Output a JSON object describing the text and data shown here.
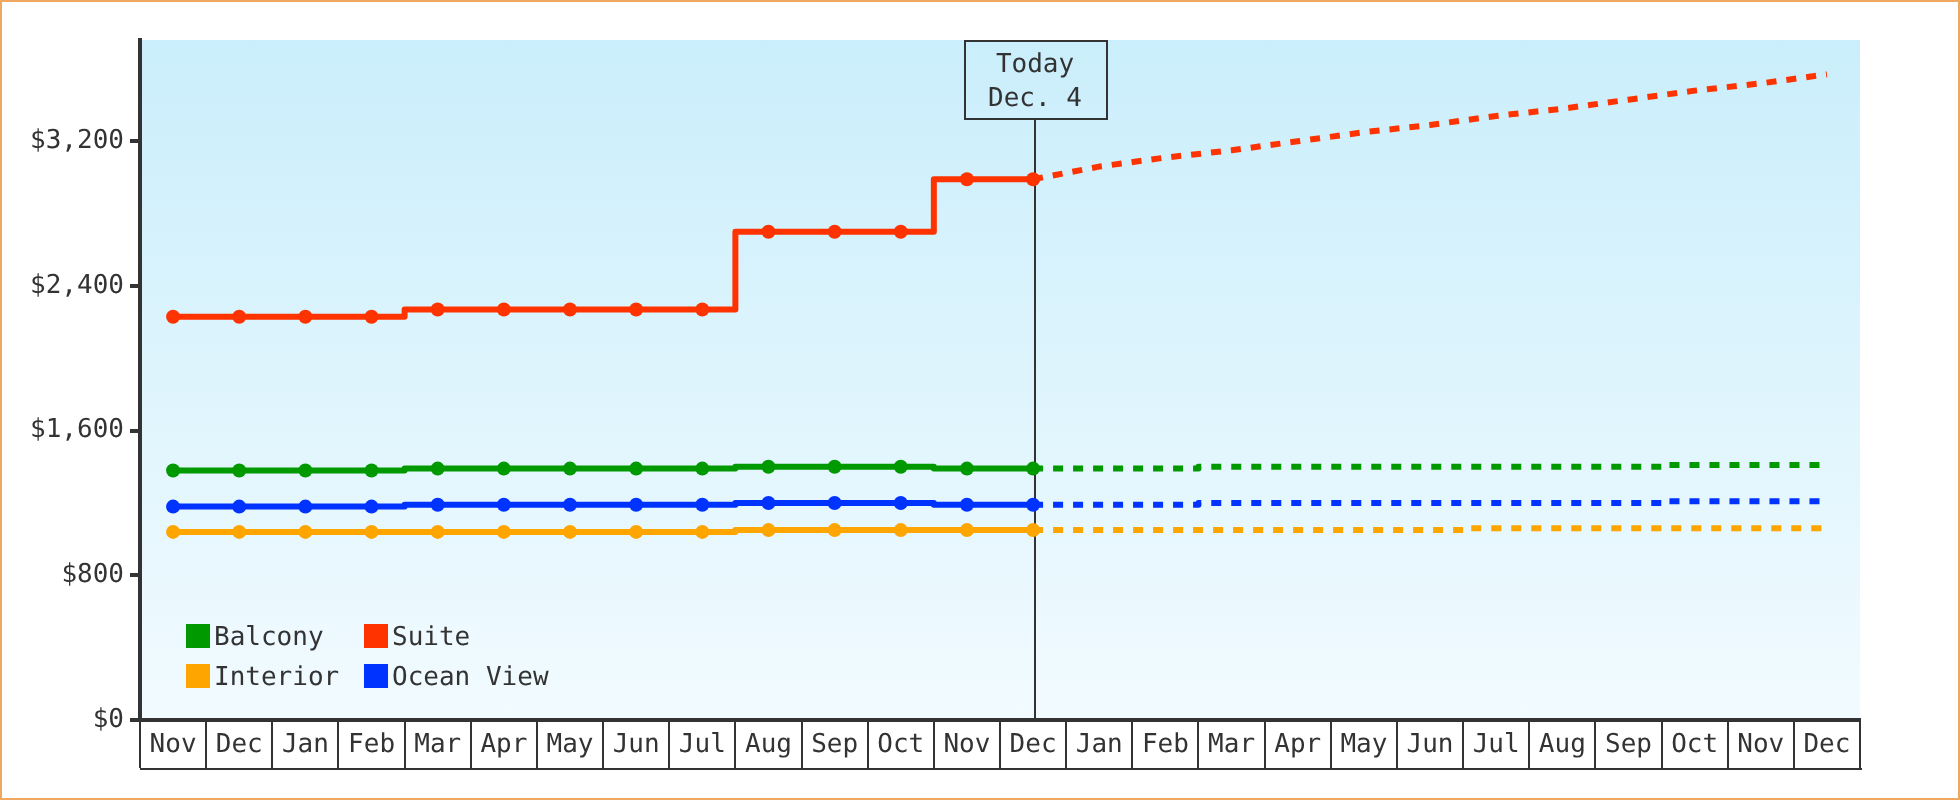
{
  "chart_data": {
    "type": "step",
    "categories": [
      "Nov",
      "Dec",
      "Jan",
      "Feb",
      "Mar",
      "Apr",
      "May",
      "Jun",
      "Jul",
      "Aug",
      "Sep",
      "Oct",
      "Nov",
      "Dec",
      "Jan",
      "Feb",
      "Mar",
      "Apr",
      "May",
      "Jun",
      "Jul",
      "Aug",
      "Sep",
      "Oct",
      "Nov",
      "Dec"
    ],
    "series": [
      {
        "name": "Balcony",
        "color": "#009900",
        "values": [
          1380,
          1380,
          1380,
          1380,
          1390,
          1390,
          1390,
          1390,
          1390,
          1400,
          1400,
          1400,
          1390,
          1390,
          null,
          null,
          null,
          null,
          null,
          null,
          null,
          null,
          null,
          null,
          null,
          null
        ]
      },
      {
        "color": "#009900",
        "line_style": "dashed",
        "marker": "none",
        "values": [
          null,
          null,
          null,
          null,
          null,
          null,
          null,
          null,
          null,
          null,
          null,
          null,
          null,
          1390,
          1390,
          1390,
          1400,
          1400,
          1400,
          1400,
          1400,
          1400,
          1400,
          1410,
          1410,
          1410
        ]
      },
      {
        "name": "Suite",
        "color": "#ff3300",
        "values": [
          2230,
          2230,
          2230,
          2230,
          2270,
          2270,
          2270,
          2270,
          2270,
          2700,
          2700,
          2700,
          2990,
          2990,
          null,
          null,
          null,
          null,
          null,
          null,
          null,
          null,
          null,
          null,
          null,
          null
        ]
      },
      {
        "type": "line",
        "color": "#ff3300",
        "line_style": "dashed",
        "marker": "none",
        "values": [
          null,
          null,
          null,
          null,
          null,
          null,
          null,
          null,
          null,
          null,
          null,
          null,
          null,
          2990,
          3060,
          3110,
          3150,
          3200,
          3250,
          3290,
          3340,
          3380,
          3430,
          3480,
          3520,
          3570
        ]
      },
      {
        "name": "Interior",
        "color": "#ffa500",
        "values": [
          1040,
          1040,
          1040,
          1040,
          1040,
          1040,
          1040,
          1040,
          1040,
          1050,
          1050,
          1050,
          1050,
          1050,
          null,
          null,
          null,
          null,
          null,
          null,
          null,
          null,
          null,
          null,
          null,
          null
        ]
      },
      {
        "color": "#ffa500",
        "line_style": "dashed",
        "marker": "none",
        "values": [
          null,
          null,
          null,
          null,
          null,
          null,
          null,
          null,
          null,
          null,
          null,
          null,
          null,
          1050,
          1050,
          1050,
          1050,
          1050,
          1050,
          1050,
          1060,
          1060,
          1060,
          1060,
          1060,
          1060
        ]
      },
      {
        "name": "Ocean View",
        "color": "#0033ff",
        "values": [
          1180,
          1180,
          1180,
          1180,
          1190,
          1190,
          1190,
          1190,
          1190,
          1200,
          1200,
          1200,
          1190,
          1190,
          null,
          null,
          null,
          null,
          null,
          null,
          null,
          null,
          null,
          null,
          null,
          null
        ]
      },
      {
        "color": "#0033ff",
        "line_style": "dashed",
        "marker": "none",
        "values": [
          null,
          null,
          null,
          null,
          null,
          null,
          null,
          null,
          null,
          null,
          null,
          null,
          null,
          1190,
          1190,
          1190,
          1200,
          1200,
          1200,
          1200,
          1200,
          1200,
          1200,
          1210,
          1210,
          1210
        ]
      }
    ],
    "ylim": [
      0,
      3760
    ],
    "yticks": [
      {
        "value": 0,
        "label": "$0"
      },
      {
        "value": 800,
        "label": "$800"
      },
      {
        "value": 1600,
        "label": "$1,600"
      },
      {
        "value": 2400,
        "label": "$2,400"
      },
      {
        "value": 3200,
        "label": "$3,200"
      }
    ],
    "legend": "bottom left",
    "marker": "circle",
    "annotations": [
      "Today\nDec. 4"
    ]
  }
}
